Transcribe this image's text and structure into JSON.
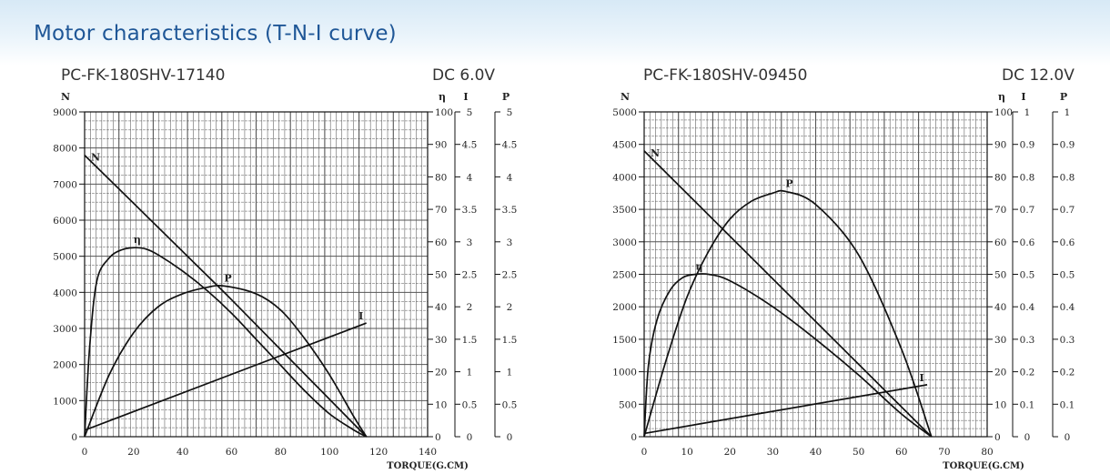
{
  "page": {
    "title": "Motor characteristics (T-N-I curve)",
    "colors": {
      "title": "#1f5797",
      "band": "#d7e9f6",
      "ink": "#111111"
    }
  },
  "chart_data": [
    {
      "type": "line",
      "model": "PC-FK-180SHV-17140",
      "supply": "DC 6.0V",
      "xlabel": "TORQUE(G.CM)",
      "ylabel": "N",
      "xlim": [
        0,
        140
      ],
      "xticks": [
        0,
        20,
        40,
        60,
        80,
        100,
        120,
        140
      ],
      "ylim": [
        0,
        9000
      ],
      "yticks": [
        0,
        1000,
        2000,
        3000,
        4000,
        5000,
        6000,
        7000,
        8000,
        9000
      ],
      "grid": true,
      "right_axes": [
        {
          "label": "η",
          "ticks": [
            "0",
            "10",
            "20",
            "30",
            "40",
            "50",
            "60",
            "70",
            "80",
            "90",
            "100"
          ]
        },
        {
          "label": "I",
          "ticks": [
            "0",
            "0.5",
            "1",
            "1.5",
            "2",
            "2.5",
            "3",
            "3.5",
            "4",
            "4.5",
            "5"
          ]
        },
        {
          "label": "P",
          "ticks": [
            "0",
            "0.5",
            "1",
            "1.5",
            "2",
            "2.5",
            "3",
            "3.5",
            "4",
            "4.5",
            "5"
          ]
        }
      ],
      "series": [
        {
          "name": "N",
          "axis": "N",
          "points": [
            [
              0,
              7800
            ],
            [
              57,
              4000
            ],
            [
              115,
              0
            ]
          ]
        },
        {
          "name": "I",
          "axis": "I",
          "points": [
            [
              0,
              0.1
            ],
            [
              115,
              1.75
            ]
          ]
        },
        {
          "name": "η",
          "axis": "η",
          "points": [
            [
              0,
              0
            ],
            [
              2,
              27
            ],
            [
              5,
              48
            ],
            [
              10,
              55
            ],
            [
              15,
              57.5
            ],
            [
              20,
              58.2
            ],
            [
              25,
              57.8
            ],
            [
              30,
              56
            ],
            [
              40,
              51
            ],
            [
              50,
              45
            ],
            [
              60,
              38
            ],
            [
              70,
              30
            ],
            [
              80,
              22
            ],
            [
              90,
              14
            ],
            [
              100,
              7
            ],
            [
              110,
              2
            ],
            [
              115,
              0
            ]
          ]
        },
        {
          "name": "P",
          "axis": "P",
          "points": [
            [
              0,
              0
            ],
            [
              10,
              0.95
            ],
            [
              20,
              1.6
            ],
            [
              30,
              2.0
            ],
            [
              40,
              2.2
            ],
            [
              50,
              2.3
            ],
            [
              57,
              2.32
            ],
            [
              70,
              2.2
            ],
            [
              80,
              1.95
            ],
            [
              90,
              1.5
            ],
            [
              100,
              0.95
            ],
            [
              110,
              0.3
            ],
            [
              115,
              0
            ]
          ]
        }
      ]
    },
    {
      "type": "line",
      "model": "PC-FK-180SHV-09450",
      "supply": "DC 12.0V",
      "xlabel": "TORQUE(G.CM)",
      "ylabel": "N",
      "xlim": [
        0,
        80
      ],
      "xticks": [
        0,
        10,
        20,
        30,
        40,
        50,
        60,
        70,
        80
      ],
      "ylim": [
        0,
        5000
      ],
      "yticks": [
        0,
        500,
        1000,
        1500,
        2000,
        2500,
        3000,
        3500,
        4000,
        4500,
        5000
      ],
      "grid": true,
      "right_axes": [
        {
          "label": "η",
          "ticks": [
            "0",
            "10",
            "20",
            "30",
            "40",
            "50",
            "60",
            "70",
            "80",
            "90",
            "100"
          ]
        },
        {
          "label": "I",
          "ticks": [
            "0",
            "0.1",
            "0.2",
            "0.3",
            "0.4",
            "0.5",
            "0.6",
            "0.7",
            "0.8",
            "0.9",
            "1"
          ]
        },
        {
          "label": "P",
          "ticks": [
            "0",
            "0.1",
            "0.2",
            "0.3",
            "0.4",
            "0.5",
            "0.6",
            "0.7",
            "0.8",
            "0.9",
            "1"
          ]
        }
      ],
      "series": [
        {
          "name": "N",
          "axis": "N",
          "points": [
            [
              0,
              4400
            ],
            [
              67,
              0
            ]
          ]
        },
        {
          "name": "I",
          "axis": "I",
          "points": [
            [
              0,
              0.01
            ],
            [
              66,
              0.16
            ]
          ]
        },
        {
          "name": "η",
          "axis": "η",
          "points": [
            [
              0,
              0
            ],
            [
              1,
              22
            ],
            [
              3,
              36
            ],
            [
              6,
              45
            ],
            [
              9,
              49
            ],
            [
              12,
              50
            ],
            [
              15,
              50
            ],
            [
              20,
              48
            ],
            [
              30,
              40
            ],
            [
              40,
              30
            ],
            [
              50,
              19
            ],
            [
              60,
              7
            ],
            [
              67,
              0
            ]
          ]
        },
        {
          "name": "P",
          "axis": "P",
          "points": [
            [
              0,
              0
            ],
            [
              5,
              0.23
            ],
            [
              10,
              0.43
            ],
            [
              15,
              0.57
            ],
            [
              20,
              0.67
            ],
            [
              25,
              0.725
            ],
            [
              30,
              0.75
            ],
            [
              33,
              0.755
            ],
            [
              40,
              0.715
            ],
            [
              50,
              0.56
            ],
            [
              60,
              0.27
            ],
            [
              67,
              0
            ]
          ]
        }
      ]
    }
  ]
}
